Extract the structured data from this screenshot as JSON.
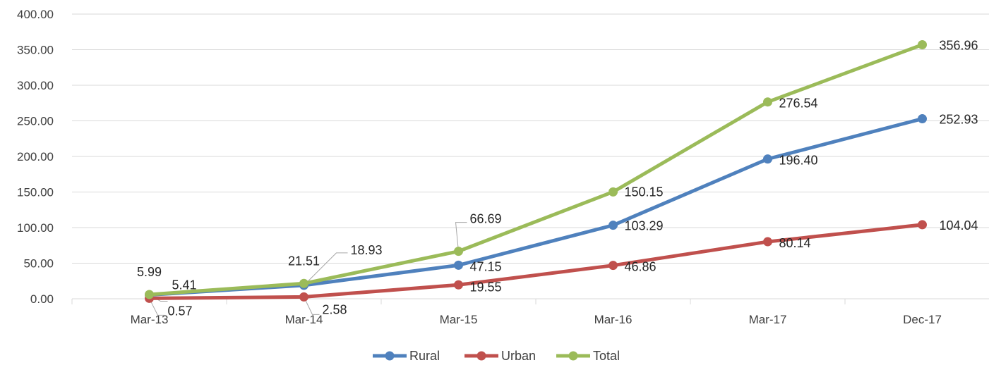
{
  "chart_data": {
    "type": "line",
    "title": "",
    "xlabel": "",
    "ylabel": "",
    "categories": [
      "Mar-13",
      "Mar-14",
      "Mar-15",
      "Mar-16",
      "Mar-17",
      "Dec-17"
    ],
    "ylim": [
      0,
      400
    ],
    "yticks": [
      "0.00",
      "50.00",
      "100.00",
      "150.00",
      "200.00",
      "250.00",
      "300.00",
      "350.00",
      "400.00"
    ],
    "grid": true,
    "legend_position": "bottom",
    "series": [
      {
        "name": "Rural",
        "color": "#4f81bd",
        "values": [
          5.41,
          18.93,
          47.15,
          103.29,
          196.4,
          252.93
        ],
        "labels": [
          "5.41",
          "18.93",
          "47.15",
          "103.29",
          "196.40",
          "252.93"
        ]
      },
      {
        "name": "Urban",
        "color": "#c0504d",
        "values": [
          0.57,
          2.58,
          19.55,
          46.86,
          80.14,
          104.04
        ],
        "labels": [
          "0.57",
          "2.58",
          "19.55",
          "46.86",
          "80.14",
          "104.04"
        ]
      },
      {
        "name": "Total",
        "color": "#9bbb59",
        "values": [
          5.99,
          21.51,
          66.69,
          150.15,
          276.54,
          356.96
        ],
        "labels": [
          "5.99",
          "21.51",
          "66.69",
          "150.15",
          "276.54",
          "356.96"
        ]
      }
    ]
  }
}
